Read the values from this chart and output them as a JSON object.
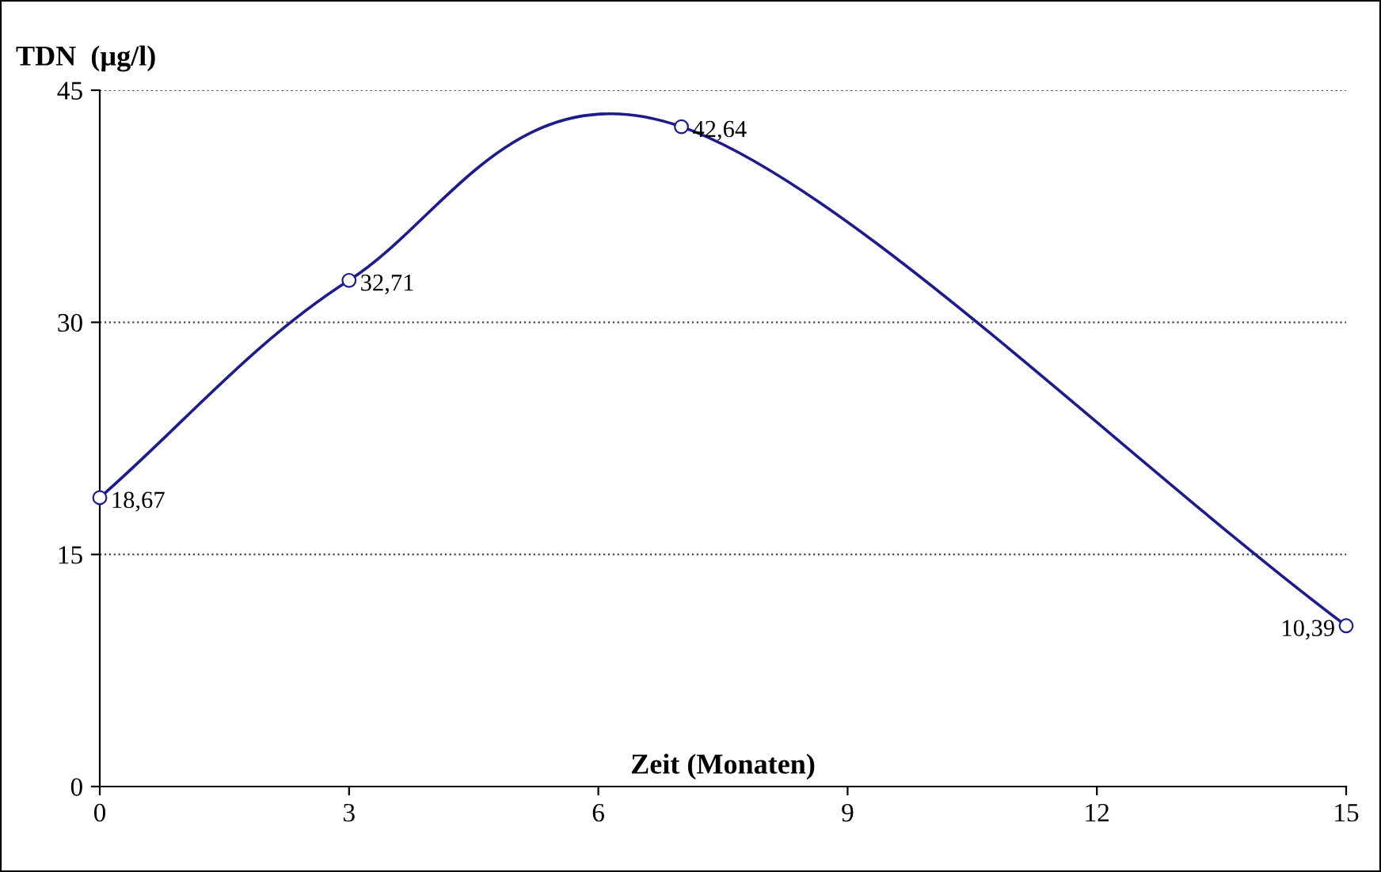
{
  "chart_data": {
    "type": "line",
    "xlabel": "Zeit (Monaten)",
    "ylabel": "TDN  (µg/l)",
    "x": [
      0,
      3,
      7,
      15
    ],
    "series": [
      {
        "color": "#1c1c8c",
        "values": [
          18.67,
          32.71,
          42.64,
          10.39
        ],
        "value_labels": [
          "18,67",
          "32,71",
          "42,64",
          "10,39"
        ]
      }
    ],
    "xlim": [
      0,
      15
    ],
    "xticks": [
      0,
      3,
      6,
      9,
      12,
      15
    ],
    "ylim": [
      0,
      45
    ],
    "yticks": [
      0,
      15,
      30,
      45
    ],
    "grid": "y",
    "marker": "circle",
    "line_style": "solid",
    "legend": false
  }
}
